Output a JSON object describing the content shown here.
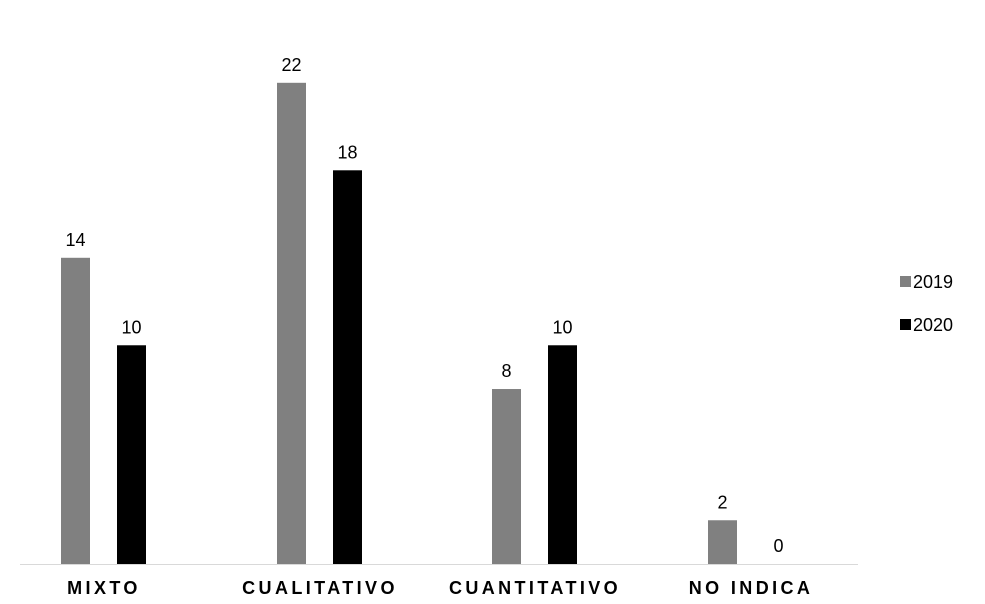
{
  "chart_data": {
    "type": "bar",
    "categories": [
      "MIXTO",
      "CUALITATIVO",
      "CUANTITATIVO",
      "NO INDICA"
    ],
    "series": [
      {
        "name": "2019",
        "values": [
          14,
          22,
          8,
          2
        ],
        "color": "#808080"
      },
      {
        "name": "2020",
        "values": [
          10,
          18,
          10,
          0
        ],
        "color": "#000000"
      }
    ],
    "ylim": [
      0,
      23.5
    ],
    "grid": false,
    "legend": "right",
    "data_labels": true
  }
}
